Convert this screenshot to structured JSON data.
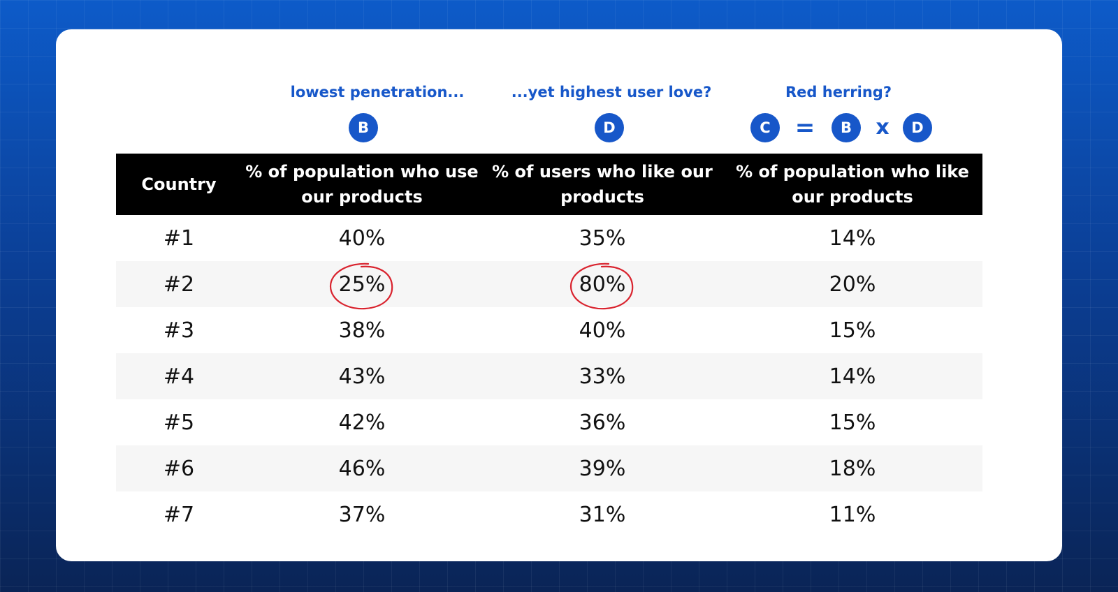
{
  "annotations": {
    "col_b": "lowest penetration...",
    "col_d": "...yet highest user love?",
    "col_c": "Red herring?"
  },
  "badges": {
    "b": "B",
    "d": "D",
    "formula": {
      "c": "C",
      "equals": "=",
      "b": "B",
      "times": "x",
      "d": "D"
    }
  },
  "chart_data": {
    "type": "table",
    "columns": [
      "Country",
      "% of population who use our products",
      "% of users who like our products",
      "% of population who like our products"
    ],
    "rows": [
      [
        "#1",
        "40%",
        "35%",
        "14%"
      ],
      [
        "#2",
        "25%",
        "80%",
        "20%"
      ],
      [
        "#3",
        "38%",
        "40%",
        "15%"
      ],
      [
        "#4",
        "43%",
        "33%",
        "14%"
      ],
      [
        "#5",
        "42%",
        "36%",
        "15%"
      ],
      [
        "#6",
        "46%",
        "39%",
        "18%"
      ],
      [
        "#7",
        "37%",
        "31%",
        "11%"
      ]
    ],
    "highlighted_cells": [
      {
        "row": 1,
        "col": 1
      },
      {
        "row": 1,
        "col": 2
      }
    ]
  },
  "colors": {
    "accent": "#1757c9",
    "header_bg": "#000000",
    "highlight_circle": "#d9232e"
  }
}
